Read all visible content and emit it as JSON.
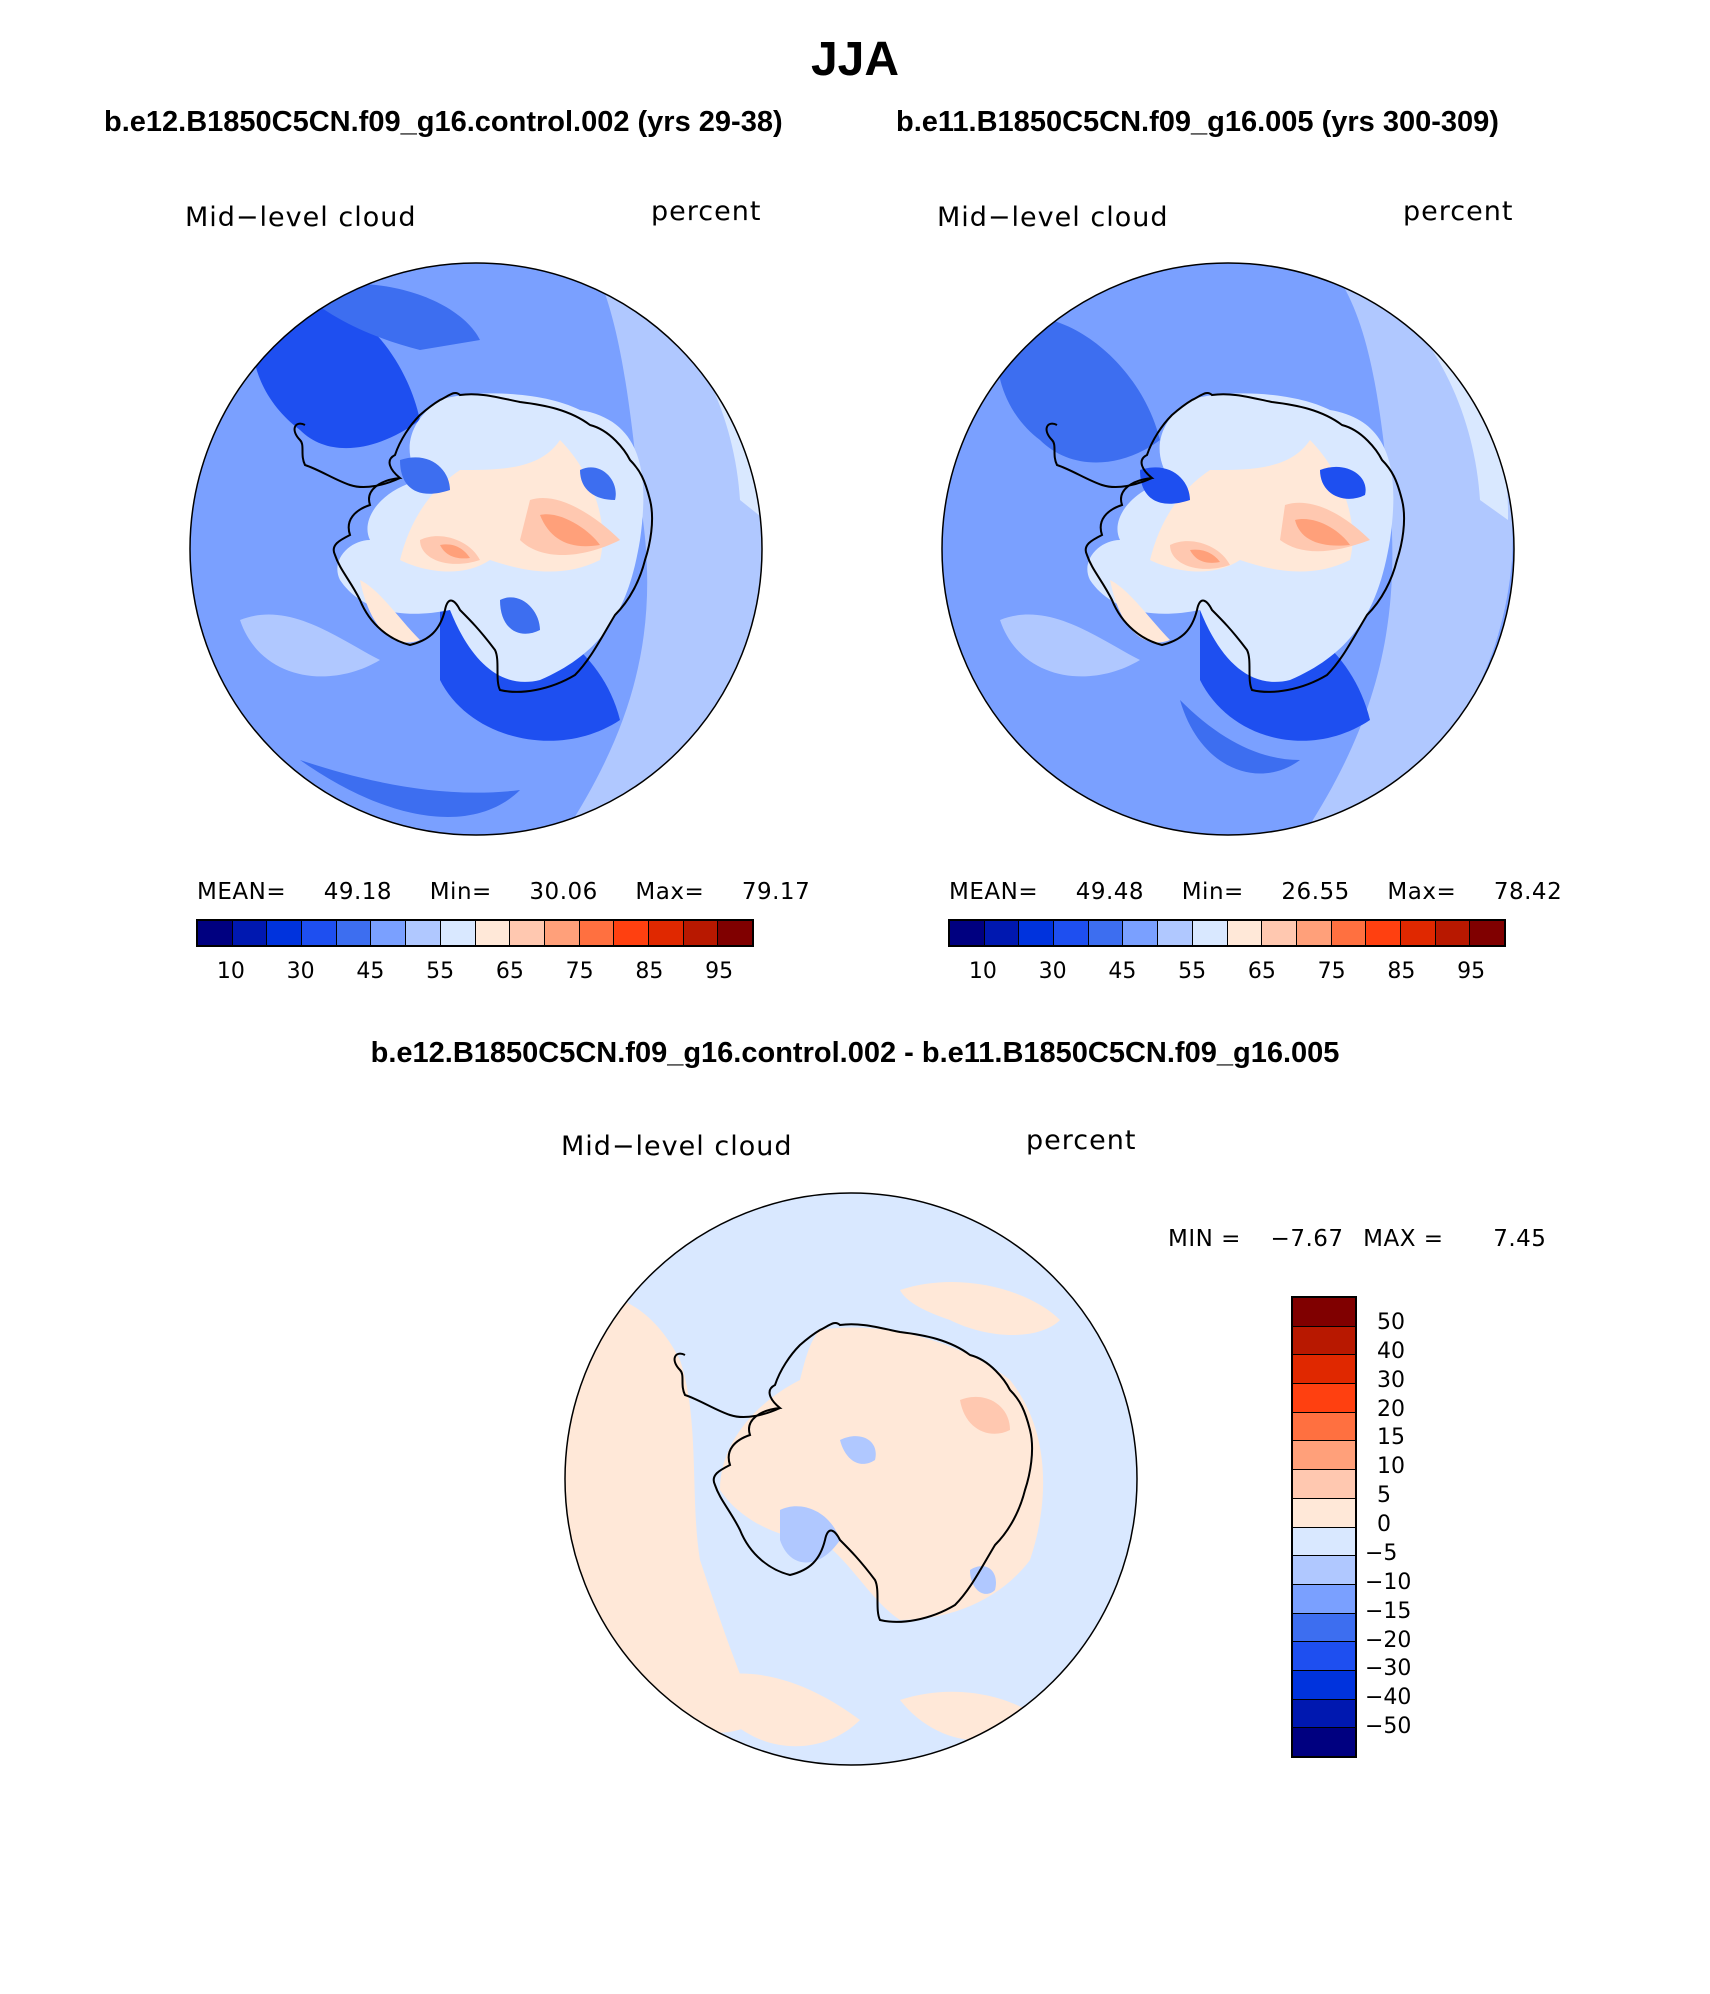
{
  "figure": {
    "season_title": "JJA",
    "left_case_title": "b.e12.B1850C5CN.f09_g16.control.002 (yrs 29-38)",
    "right_case_title": "b.e11.B1850C5CN.f09_g16.005 (yrs 300-309)",
    "diff_title": "b.e12.B1850C5CN.f09_g16.control.002 - b.e11.B1850C5CN.f09_g16.005"
  },
  "panels": [
    {
      "variable": "Mid−level cloud",
      "units": "percent",
      "mean_label": "MEAN=",
      "mean_value": "49.18",
      "min_label": "Min=",
      "min_value": "30.06",
      "max_label": "Max=",
      "max_value": "79.17"
    },
    {
      "variable": "Mid−level cloud",
      "units": "percent",
      "mean_label": "MEAN=",
      "mean_value": "49.48",
      "min_label": "Min=",
      "min_value": "26.55",
      "max_label": "Max=",
      "max_value": "78.42"
    }
  ],
  "diff_panel": {
    "variable": "Mid−level cloud",
    "units": "percent",
    "min_label": "MIN =",
    "min_value": "−7.67",
    "max_label": "MAX =",
    "max_value": "7.45"
  },
  "colorbar_abs": {
    "colors": [
      "#000080",
      "#0018b0",
      "#0033dd",
      "#1e4ff0",
      "#3d6ef0",
      "#7aa0ff",
      "#b0c8ff",
      "#d9e8ff",
      "#ffe8d8",
      "#ffc8b0",
      "#ffa07a",
      "#ff7040",
      "#ff4010",
      "#e02800",
      "#b81800",
      "#800000"
    ],
    "tick_labels": [
      "10",
      "30",
      "45",
      "55",
      "65",
      "75",
      "85",
      "95"
    ]
  },
  "colorbar_diff": {
    "colors": [
      "#800000",
      "#b81800",
      "#e02800",
      "#ff4010",
      "#ff7040",
      "#ffa07a",
      "#ffc8b0",
      "#ffe8d8",
      "#d9e8ff",
      "#b0c8ff",
      "#7aa0ff",
      "#3d6ef0",
      "#1e4ff0",
      "#0033dd",
      "#0018b0",
      "#000080"
    ],
    "tick_labels": [
      "50",
      "40",
      "30",
      "20",
      "15",
      "10",
      "5",
      "0",
      "−5",
      "−10",
      "−15",
      "−20",
      "−30",
      "−40",
      "−50"
    ]
  },
  "map_colors": {
    "c_low": "#0033dd",
    "c_45": "#3d6ef0",
    "c_50": "#7aa0ff",
    "c_55": "#b0c8ff",
    "c_60": "#d9e8ff",
    "c_65": "#ffe8d8",
    "c_70": "#ffc8b0",
    "c_75": "#ffa07a",
    "c_80": "#ff7040",
    "d_pos": "#ffe8d8",
    "d_neg": "#d9e8ff",
    "d_neg2": "#b0c8ff",
    "d_pos2": "#ffc8b0"
  }
}
